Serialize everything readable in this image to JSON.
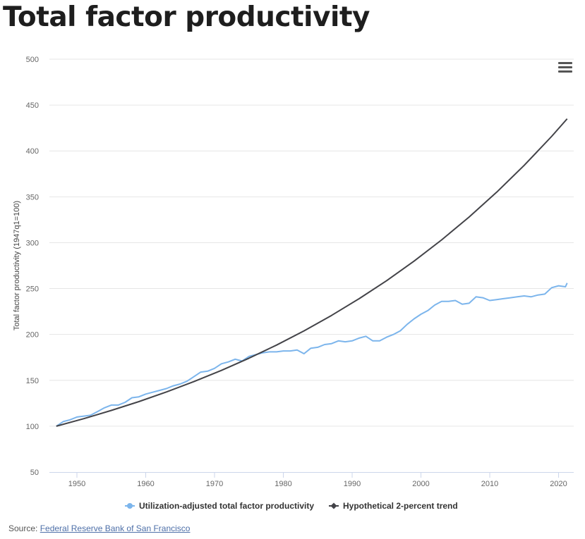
{
  "page": {
    "title": "Total factor productivity"
  },
  "menu": {
    "icon": "hamburger-menu-icon"
  },
  "source": {
    "label": "Source:",
    "link_text": "Federal Reserve Bank of San Francisco"
  },
  "colors": {
    "tfp": "#7cb5ec",
    "trend": "#434348",
    "grid": "#e6e6e6",
    "axis": "#ccd6eb"
  },
  "chart_data": {
    "type": "line",
    "ylabel": "Total factor productivity (1947q1=100)",
    "xlabel": "",
    "ylim": [
      50,
      500
    ],
    "xlim": [
      1946,
      2022.2
    ],
    "yticks": [
      50,
      100,
      150,
      200,
      250,
      300,
      350,
      400,
      450,
      500
    ],
    "xticks": [
      1950,
      1960,
      1970,
      1980,
      1990,
      2000,
      2010,
      2020
    ],
    "grid": true,
    "legend_position": "bottom",
    "series": [
      {
        "name": "Utilization-adjusted total factor productivity",
        "marker": "circle",
        "x": [
          1947,
          1948,
          1949,
          1950,
          1951,
          1952,
          1953,
          1954,
          1955,
          1956,
          1957,
          1958,
          1959,
          1960,
          1961,
          1962,
          1963,
          1964,
          1965,
          1966,
          1967,
          1968,
          1969,
          1970,
          1971,
          1972,
          1973,
          1974,
          1975,
          1976,
          1977,
          1978,
          1979,
          1980,
          1981,
          1982,
          1983,
          1984,
          1985,
          1986,
          1987,
          1988,
          1989,
          1990,
          1991,
          1992,
          1993,
          1994,
          1995,
          1996,
          1997,
          1998,
          1999,
          2000,
          2001,
          2002,
          2003,
          2004,
          2005,
          2006,
          2007,
          2008,
          2009,
          2010,
          2011,
          2012,
          2013,
          2014,
          2015,
          2016,
          2017,
          2018,
          2019,
          2020,
          2021,
          2021.25
        ],
        "values": [
          100,
          105,
          107,
          110,
          111,
          112,
          116,
          120,
          123,
          123,
          126,
          131,
          132,
          135,
          137,
          139,
          141,
          144,
          146,
          149,
          154,
          159,
          160,
          163,
          168,
          170,
          173,
          171,
          176,
          178,
          180,
          181,
          181,
          182,
          182,
          183,
          179,
          185,
          186,
          189,
          190,
          193,
          192,
          193,
          196,
          198,
          193,
          193,
          197,
          200,
          204,
          211,
          217,
          222,
          226,
          232,
          236,
          236,
          237,
          233,
          234,
          241,
          240,
          237,
          238,
          239,
          240,
          241,
          242,
          241,
          243,
          244,
          251,
          253,
          252,
          256
        ]
      },
      {
        "name": "Hypothetical 2-percent trend",
        "marker": "diamond",
        "x": [
          1947,
          1951,
          1955,
          1959,
          1963,
          1967,
          1971,
          1975,
          1979,
          1983,
          1987,
          1991,
          1995,
          1999,
          2003,
          2007,
          2011,
          2015,
          2019,
          2021.25
        ],
        "values": [
          100,
          108.2,
          117.2,
          126.8,
          137.3,
          148.6,
          160.8,
          174.1,
          188.4,
          203.9,
          220.7,
          238.9,
          258.6,
          279.9,
          303.0,
          328.0,
          355.0,
          384.3,
          415.9,
          435
        ]
      }
    ]
  }
}
